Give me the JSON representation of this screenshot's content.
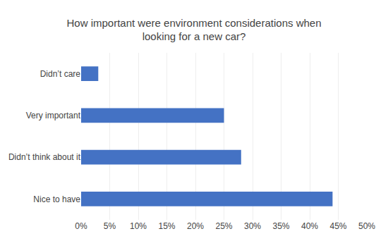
{
  "chart_data": {
    "type": "bar",
    "orientation": "horizontal",
    "title": "How important were environment considerations when\nlooking for a new car?",
    "categories": [
      "Nice to have",
      "Didn’t think about it",
      "Very important",
      "Didn’t care"
    ],
    "values": [
      0.44,
      0.28,
      0.25,
      0.03
    ],
    "color": "#4472C4",
    "xlim": [
      0,
      0.5
    ],
    "xticks": [
      {
        "value": 0.0,
        "label": "0%"
      },
      {
        "value": 0.05,
        "label": "5%"
      },
      {
        "value": 0.1,
        "label": "10%"
      },
      {
        "value": 0.15,
        "label": "15%"
      },
      {
        "value": 0.2,
        "label": "20%"
      },
      {
        "value": 0.25,
        "label": "25%"
      },
      {
        "value": 0.3,
        "label": "30%"
      },
      {
        "value": 0.35,
        "label": "35%"
      },
      {
        "value": 0.4,
        "label": "40%"
      },
      {
        "value": 0.45,
        "label": "45%"
      },
      {
        "value": 0.5,
        "label": "50%"
      }
    ],
    "grid": true
  }
}
